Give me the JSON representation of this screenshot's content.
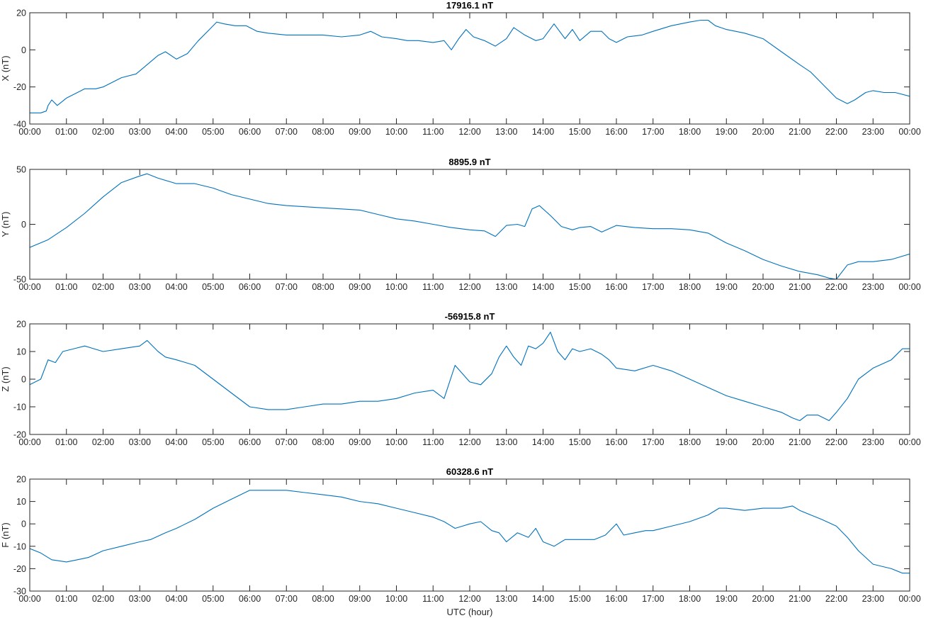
{
  "chart_data": [
    {
      "type": "line",
      "title": "17916.1 nT",
      "ylabel": "X (nT)",
      "xlabel": "",
      "ylim": [
        -40,
        20
      ],
      "yticks": [
        -40,
        -20,
        0,
        20
      ],
      "xlim": [
        0,
        24
      ],
      "x": [
        0,
        0.3,
        0.45,
        0.5,
        0.6,
        0.75,
        1.0,
        1.5,
        1.8,
        2.0,
        2.5,
        2.9,
        3.2,
        3.5,
        3.7,
        4.0,
        4.3,
        4.6,
        4.9,
        5.1,
        5.3,
        5.6,
        5.9,
        6.2,
        6.5,
        7.0,
        7.5,
        8.0,
        8.5,
        9.0,
        9.3,
        9.6,
        10.0,
        10.3,
        10.6,
        11.0,
        11.3,
        11.5,
        11.7,
        11.9,
        12.1,
        12.4,
        12.7,
        13.0,
        13.2,
        13.5,
        13.8,
        14.0,
        14.3,
        14.6,
        14.8,
        15.0,
        15.3,
        15.6,
        15.8,
        16.0,
        16.3,
        16.7,
        17.0,
        17.5,
        18.0,
        18.3,
        18.5,
        18.7,
        19.0,
        19.5,
        20.0,
        20.5,
        21.0,
        21.3,
        21.7,
        22.0,
        22.3,
        22.5,
        22.8,
        23.0,
        23.3,
        23.6,
        24.0
      ],
      "values": [
        -34,
        -34,
        -33,
        -30,
        -27,
        -30,
        -26,
        -21,
        -21,
        -20,
        -15,
        -13,
        -8,
        -3,
        -1,
        -5,
        -2,
        5,
        11,
        15,
        14,
        13,
        13,
        10,
        9,
        8,
        8,
        8,
        7,
        8,
        10,
        7,
        6,
        5,
        5,
        4,
        5,
        0,
        6,
        11,
        7,
        5,
        2,
        6,
        12,
        8,
        5,
        6,
        14,
        6,
        11,
        5,
        10,
        10,
        6,
        4,
        7,
        8,
        10,
        13,
        15,
        16,
        16,
        13,
        11,
        9,
        6,
        -1,
        -8,
        -12,
        -20,
        -26,
        -29,
        -27,
        -23,
        -22,
        -23,
        -23,
        -25
      ],
      "x_ticks": [
        "00:00",
        "01:00",
        "02:00",
        "03:00",
        "04:00",
        "05:00",
        "06:00",
        "07:00",
        "08:00",
        "09:00",
        "10:00",
        "11:00",
        "12:00",
        "13:00",
        "14:00",
        "15:00",
        "16:00",
        "17:00",
        "18:00",
        "19:00",
        "20:00",
        "21:00",
        "22:00",
        "23:00",
        "00:00"
      ]
    },
    {
      "type": "line",
      "title": "8895.9 nT",
      "ylabel": "Y (nT)",
      "xlabel": "",
      "ylim": [
        -50,
        50
      ],
      "yticks": [
        -50,
        0,
        50
      ],
      "xlim": [
        0,
        24
      ],
      "x": [
        0,
        0.5,
        1.0,
        1.5,
        2.0,
        2.5,
        3.0,
        3.2,
        3.5,
        4.0,
        4.5,
        5.0,
        5.5,
        6.0,
        6.5,
        7.0,
        7.5,
        8.0,
        8.5,
        9.0,
        9.5,
        10.0,
        10.5,
        11.0,
        11.5,
        12.0,
        12.4,
        12.7,
        13.0,
        13.3,
        13.5,
        13.7,
        13.9,
        14.2,
        14.5,
        14.8,
        15.0,
        15.3,
        15.6,
        16.0,
        16.5,
        17.0,
        17.5,
        18.0,
        18.5,
        19.0,
        19.5,
        20.0,
        20.5,
        21.0,
        21.5,
        21.8,
        22.0,
        22.3,
        22.6,
        23.0,
        23.5,
        24.0
      ],
      "values": [
        -21,
        -14,
        -3,
        10,
        25,
        38,
        44,
        46,
        42,
        37,
        37,
        33,
        27,
        23,
        19,
        17,
        16,
        15,
        14,
        13,
        9,
        5,
        3,
        0,
        -3,
        -5,
        -6,
        -11,
        -1,
        0,
        -2,
        14,
        17,
        8,
        -2,
        -5,
        -3,
        -2,
        -7,
        -1,
        -3,
        -4,
        -4,
        -5,
        -8,
        -17,
        -24,
        -32,
        -38,
        -43,
        -46,
        -49,
        -50,
        -37,
        -34,
        -34,
        -32,
        -27
      ]
    },
    {
      "type": "line",
      "title": "-56915.8 nT",
      "ylabel": "Z (nT)",
      "xlabel": "",
      "ylim": [
        -20,
        20
      ],
      "yticks": [
        -20,
        -10,
        0,
        10,
        20
      ],
      "xlim": [
        0,
        24
      ],
      "x": [
        0,
        0.3,
        0.5,
        0.7,
        0.9,
        1.2,
        1.5,
        2.0,
        2.5,
        3.0,
        3.2,
        3.5,
        3.7,
        4.0,
        4.5,
        5.0,
        5.5,
        6.0,
        6.5,
        7.0,
        7.5,
        8.0,
        8.5,
        9.0,
        9.5,
        10.0,
        10.5,
        11.0,
        11.3,
        11.6,
        11.8,
        12.0,
        12.3,
        12.6,
        12.8,
        13.0,
        13.2,
        13.4,
        13.6,
        13.8,
        14.0,
        14.2,
        14.4,
        14.6,
        14.8,
        15.0,
        15.3,
        15.6,
        15.8,
        16.0,
        16.5,
        17.0,
        17.5,
        18.0,
        18.5,
        19.0,
        19.5,
        20.0,
        20.5,
        20.8,
        21.0,
        21.2,
        21.5,
        21.8,
        22.0,
        22.3,
        22.6,
        23.0,
        23.5,
        23.8,
        24.0
      ],
      "values": [
        -2,
        0,
        7,
        6,
        10,
        11,
        12,
        10,
        11,
        12,
        14,
        10,
        8,
        7,
        5,
        0,
        -5,
        -10,
        -11,
        -11,
        -10,
        -9,
        -9,
        -8,
        -8,
        -7,
        -5,
        -4,
        -7,
        5,
        2,
        -1,
        -2,
        2,
        8,
        12,
        8,
        5,
        12,
        11,
        13,
        17,
        10,
        7,
        11,
        10,
        11,
        9,
        7,
        4,
        3,
        5,
        3,
        0,
        -3,
        -6,
        -8,
        -10,
        -12,
        -14,
        -15,
        -13,
        -13,
        -15,
        -12,
        -7,
        0,
        4,
        7,
        11,
        11
      ]
    },
    {
      "type": "line",
      "title": "60328.6 nT",
      "ylabel": "F (nT)",
      "xlabel": "UTC (hour)",
      "ylim": [
        -30,
        20
      ],
      "yticks": [
        -30,
        -20,
        -10,
        0,
        10,
        20
      ],
      "xlim": [
        0,
        24
      ],
      "x": [
        0,
        0.3,
        0.6,
        1.0,
        1.3,
        1.6,
        2.0,
        2.5,
        3.0,
        3.3,
        3.7,
        4.0,
        4.5,
        5.0,
        5.5,
        6.0,
        6.5,
        7.0,
        7.5,
        8.0,
        8.5,
        9.0,
        9.5,
        10.0,
        10.5,
        11.0,
        11.3,
        11.6,
        11.8,
        12.0,
        12.3,
        12.6,
        12.8,
        13.0,
        13.3,
        13.6,
        13.8,
        14.0,
        14.3,
        14.6,
        15.0,
        15.4,
        15.7,
        16.0,
        16.2,
        16.5,
        16.8,
        17.0,
        17.5,
        18.0,
        18.5,
        18.8,
        19.0,
        19.5,
        20.0,
        20.5,
        20.8,
        21.0,
        21.3,
        21.6,
        22.0,
        22.3,
        22.6,
        23.0,
        23.5,
        23.8,
        24.0
      ],
      "values": [
        -11,
        -13,
        -16,
        -17,
        -16,
        -15,
        -12,
        -10,
        -8,
        -7,
        -4,
        -2,
        2,
        7,
        11,
        15,
        15,
        15,
        14,
        13,
        12,
        10,
        9,
        7,
        5,
        3,
        1,
        -2,
        -1,
        0,
        1,
        -3,
        -4,
        -8,
        -4,
        -6,
        -2,
        -8,
        -10,
        -7,
        -7,
        -7,
        -5,
        0,
        -5,
        -4,
        -3,
        -3,
        -1,
        1,
        4,
        7,
        7,
        6,
        7,
        7,
        8,
        6,
        4,
        2,
        -1,
        -6,
        -12,
        -18,
        -20,
        -22,
        -22
      ]
    }
  ]
}
